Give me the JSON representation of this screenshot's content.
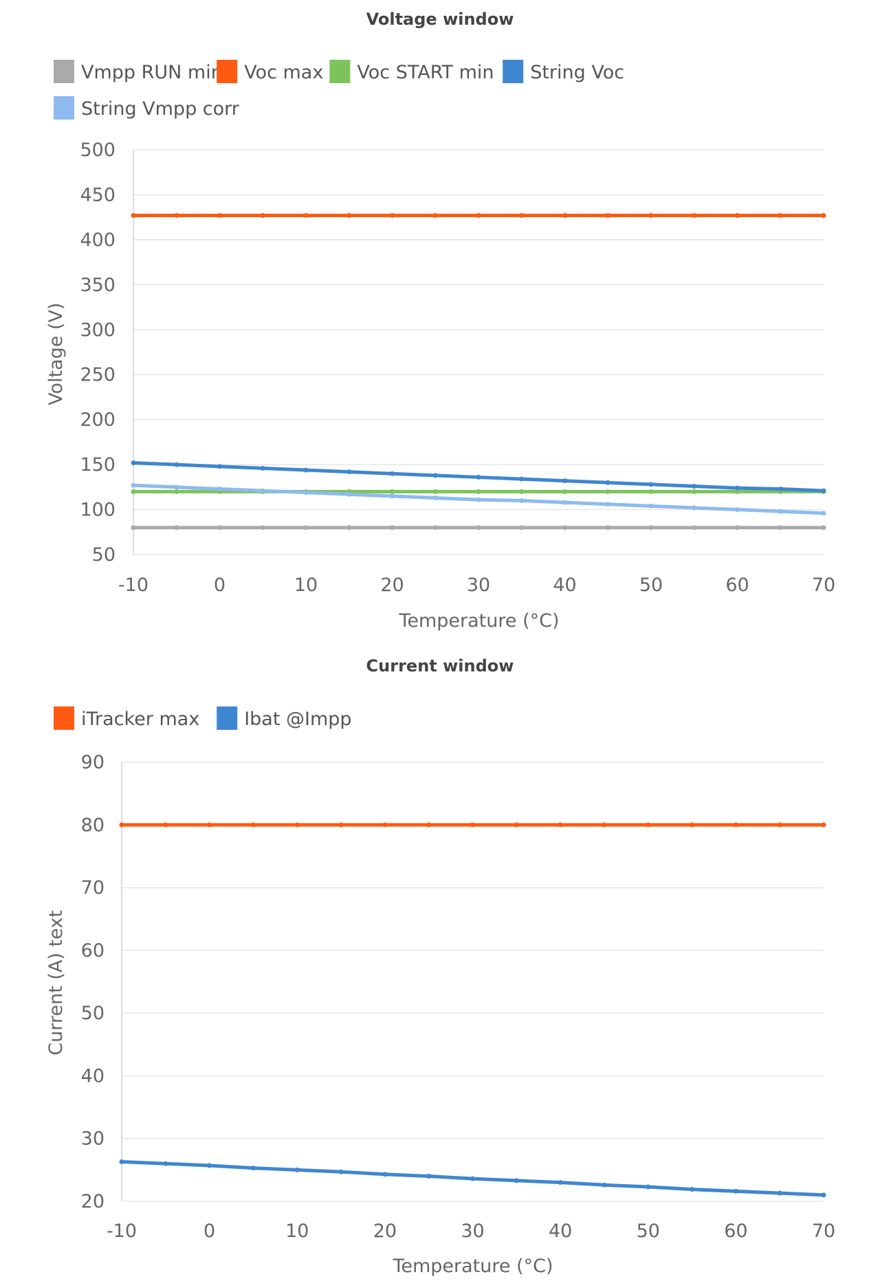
{
  "chart_data": [
    {
      "type": "line",
      "title": "Voltage window",
      "xlabel": "Temperature (°C)",
      "ylabel": "Voltage (V)",
      "xlim": [
        -10,
        70
      ],
      "ylim": [
        50,
        500
      ],
      "xticks": [
        -10,
        0,
        10,
        20,
        30,
        40,
        50,
        60,
        70
      ],
      "yticks": [
        50,
        100,
        150,
        200,
        250,
        300,
        350,
        400,
        450,
        500
      ],
      "grid": true,
      "legend": "top-left",
      "x": [
        -10,
        -5,
        0,
        5,
        10,
        15,
        20,
        25,
        30,
        35,
        40,
        45,
        50,
        55,
        60,
        65,
        70
      ],
      "series": [
        {
          "name": "Vmpp RUN min",
          "color": "#aaaaaa",
          "values": [
            80,
            80,
            80,
            80,
            80,
            80,
            80,
            80,
            80,
            80,
            80,
            80,
            80,
            80,
            80,
            80,
            80
          ]
        },
        {
          "name": "Voc max",
          "color": "#ff5a12",
          "values": [
            427,
            427,
            427,
            427,
            427,
            427,
            427,
            427,
            427,
            427,
            427,
            427,
            427,
            427,
            427,
            427,
            427
          ]
        },
        {
          "name": "Voc START min",
          "color": "#7cc45a",
          "values": [
            120,
            120,
            120,
            120,
            120,
            120,
            120,
            120,
            120,
            120,
            120,
            120,
            120,
            120,
            120,
            120,
            120
          ]
        },
        {
          "name": "String Voc",
          "color": "#3f86d1",
          "values": [
            152,
            150,
            148,
            146,
            144,
            142,
            140,
            138,
            136,
            134,
            132,
            130,
            128,
            126,
            124,
            123,
            121
          ]
        },
        {
          "name": "String Vmpp corr",
          "color": "#8dbbf0",
          "values": [
            127,
            125,
            123,
            121,
            119,
            117,
            115,
            113,
            111,
            110,
            108,
            106,
            104,
            102,
            100,
            98,
            96
          ]
        }
      ]
    },
    {
      "type": "line",
      "title": "Current window",
      "xlabel": "Temperature (°C)",
      "ylabel": "Current (A) text",
      "xlim": [
        -10,
        70
      ],
      "ylim": [
        20,
        90
      ],
      "xticks": [
        -10,
        0,
        10,
        20,
        30,
        40,
        50,
        60,
        70
      ],
      "yticks": [
        20,
        30,
        40,
        50,
        60,
        70,
        80,
        90
      ],
      "grid": true,
      "legend": "top-left",
      "x": [
        -10,
        -5,
        0,
        5,
        10,
        15,
        20,
        25,
        30,
        35,
        40,
        45,
        50,
        55,
        60,
        65,
        70
      ],
      "series": [
        {
          "name": "iTracker max",
          "color": "#ff5a12",
          "values": [
            80,
            80,
            80,
            80,
            80,
            80,
            80,
            80,
            80,
            80,
            80,
            80,
            80,
            80,
            80,
            80,
            80
          ]
        },
        {
          "name": "Ibat @Impp",
          "color": "#3f86d1",
          "values": [
            26.3,
            26.0,
            25.7,
            25.3,
            25.0,
            24.7,
            24.3,
            24.0,
            23.6,
            23.3,
            23.0,
            22.6,
            22.3,
            21.9,
            21.6,
            21.3,
            21.0
          ]
        }
      ]
    }
  ]
}
